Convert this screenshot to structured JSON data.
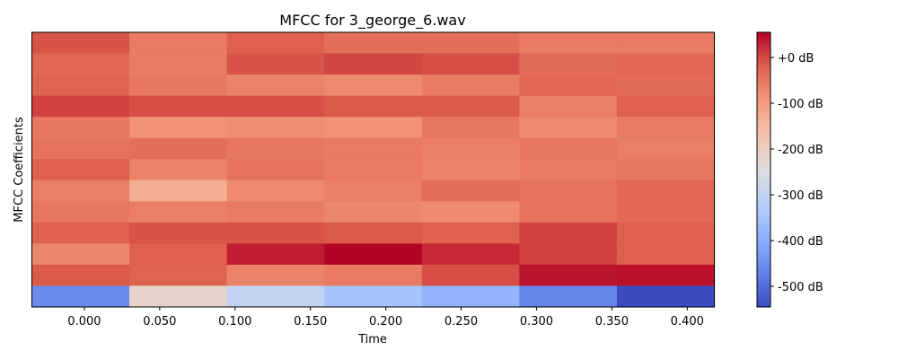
{
  "chart_data": {
    "type": "heatmap",
    "title": "MFCC for 3_george_6.wav",
    "xlabel": "Time",
    "ylabel": "MFCC Coefficients",
    "x_ticks": [
      "0.000",
      "0.050",
      "0.100",
      "0.150",
      "0.200",
      "0.250",
      "0.300",
      "0.350",
      "0.400"
    ],
    "x_tick_values": [
      0.0,
      0.05,
      0.1,
      0.15,
      0.2,
      0.25,
      0.3,
      0.35,
      0.4
    ],
    "x_range": [
      -0.0348,
      0.418
    ],
    "columns": 7,
    "rows": 13,
    "row_order": "top-to-bottom",
    "colormap": "coolwarm",
    "value_range": [
      -545,
      55
    ],
    "colorbar": {
      "ticks": [
        "+0 dB",
        "-100 dB",
        "-200 dB",
        "-300 dB",
        "-400 dB",
        "-500 dB"
      ],
      "tick_values": [
        0,
        -100,
        -200,
        -300,
        -400,
        -500
      ]
    },
    "values": [
      [
        -10,
        -55,
        -20,
        -40,
        -40,
        -55,
        -55
      ],
      [
        -30,
        -55,
        -10,
        0,
        -5,
        -35,
        -30
      ],
      [
        -25,
        -50,
        -65,
        -75,
        -55,
        -30,
        -35
      ],
      [
        5,
        -5,
        -5,
        -15,
        -15,
        -60,
        -20
      ],
      [
        -50,
        -85,
        -80,
        -85,
        -50,
        -75,
        -55
      ],
      [
        -45,
        -40,
        -50,
        -55,
        -60,
        -50,
        -60
      ],
      [
        -20,
        -65,
        -45,
        -55,
        -65,
        -55,
        -50
      ],
      [
        -60,
        -130,
        -75,
        -60,
        -40,
        -45,
        -30
      ],
      [
        -50,
        -60,
        -55,
        -70,
        -75,
        -45,
        -30
      ],
      [
        -20,
        -10,
        -10,
        -15,
        -20,
        5,
        -20
      ],
      [
        -70,
        -20,
        35,
        55,
        25,
        5,
        -20
      ],
      [
        -15,
        -25,
        -65,
        -55,
        -5,
        40,
        45
      ],
      [
        -455,
        -215,
        -300,
        -350,
        -385,
        -465,
        -545
      ]
    ]
  }
}
